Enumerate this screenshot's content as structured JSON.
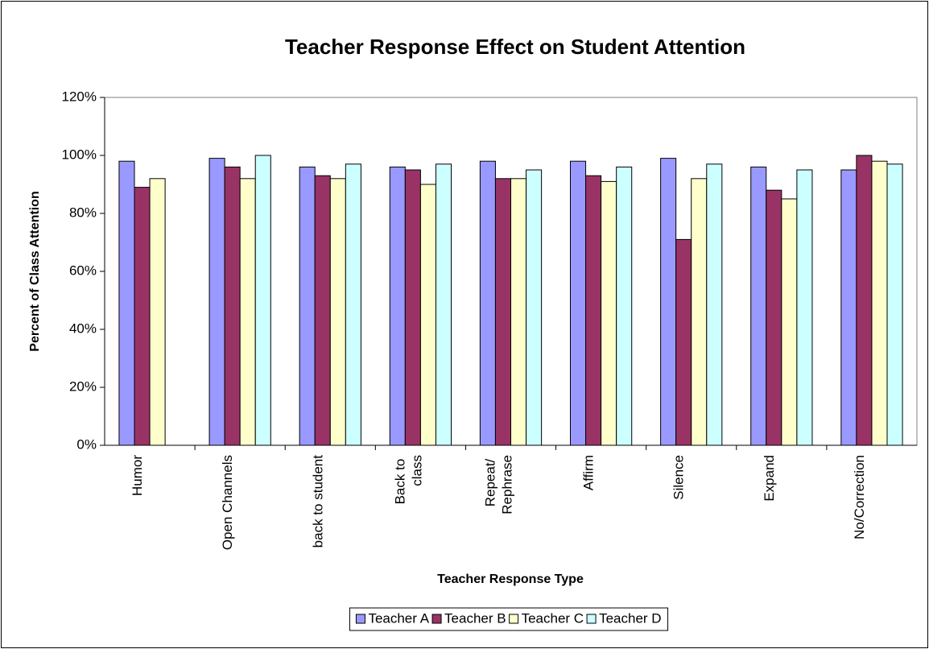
{
  "chart_data": {
    "type": "bar",
    "title": "Teacher Response Effect on Student Attention",
    "x_label": "Teacher Response Type",
    "y_label": "Percent of Class Attention",
    "categories": [
      "Humor",
      "Open Channels",
      "back to student",
      "Back to\nclass",
      "Repeat/\nRephrase",
      "Affirm",
      "Silence",
      "Expand",
      "No/Correction"
    ],
    "series": [
      {
        "name": "Teacher A",
        "color": "#9999ff",
        "values": [
          98,
          99,
          96,
          96,
          98,
          98,
          99,
          96,
          95
        ]
      },
      {
        "name": "Teacher B",
        "color": "#993366",
        "values": [
          89,
          96,
          93,
          95,
          92,
          93,
          71,
          88,
          100
        ]
      },
      {
        "name": "Teacher C",
        "color": "#ffffcc",
        "values": [
          92,
          92,
          92,
          90,
          92,
          91,
          92,
          85,
          98
        ]
      },
      {
        "name": "Teacher D",
        "color": "#ccffff",
        "values": [
          null,
          100,
          97,
          97,
          95,
          96,
          97,
          95,
          97
        ]
      }
    ],
    "ylim": [
      0,
      120
    ],
    "yticks": [
      {
        "value": 0,
        "label": "0%"
      },
      {
        "value": 20,
        "label": "20%"
      },
      {
        "value": 40,
        "label": "40%"
      },
      {
        "value": 60,
        "label": "60%"
      },
      {
        "value": 80,
        "label": "80%"
      },
      {
        "value": 100,
        "label": "100%"
      },
      {
        "value": 120,
        "label": "120%"
      }
    ],
    "grid": false,
    "legend": "bottom"
  }
}
